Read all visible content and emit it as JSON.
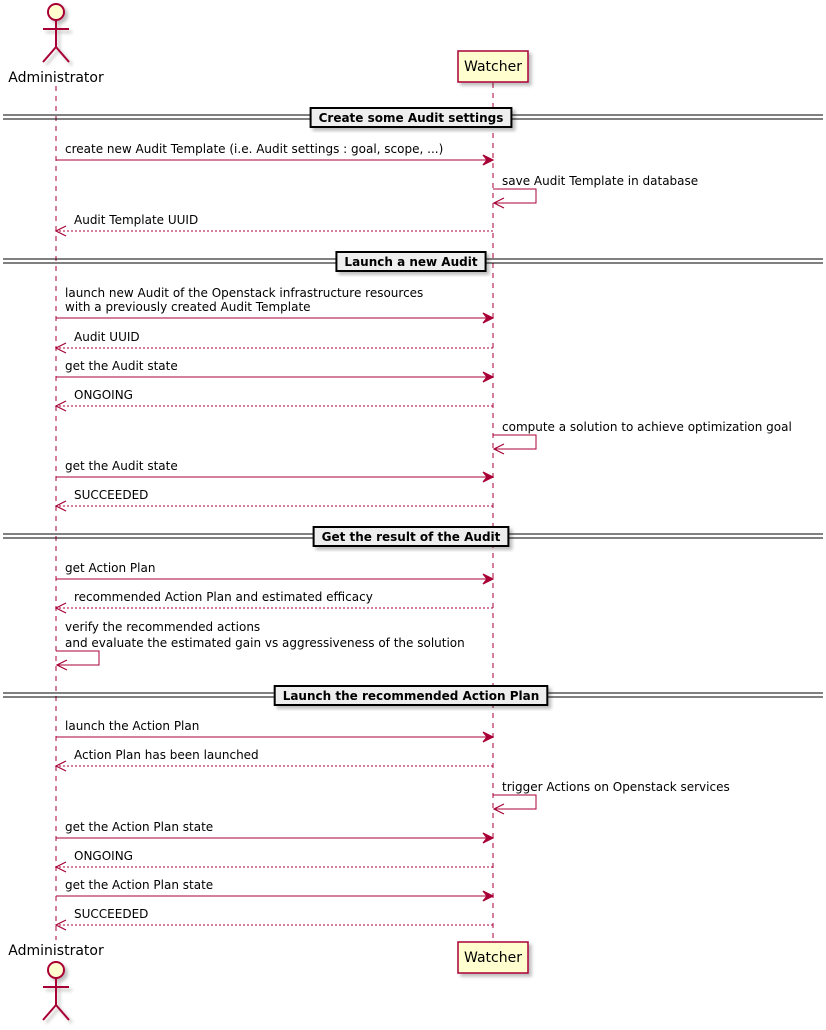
{
  "colors": {
    "line": "#A80036",
    "participant_fill": "#FEFECE",
    "divider_fill": "#EEEEEE"
  },
  "participants": {
    "admin": {
      "label": "Administrator",
      "kind": "actor"
    },
    "watcher": {
      "label": "Watcher",
      "kind": "participant"
    }
  },
  "sequence": [
    {
      "type": "divider",
      "label": "Create some Audit settings"
    },
    {
      "type": "msg",
      "from": "admin",
      "to": "watcher",
      "style": "sync",
      "lines": [
        "create new Audit Template (i.e. Audit settings : goal, scope, ...)"
      ]
    },
    {
      "type": "self",
      "on": "watcher",
      "lines": [
        "save Audit Template in database"
      ]
    },
    {
      "type": "msg",
      "from": "watcher",
      "to": "admin",
      "style": "return",
      "lines": [
        "Audit Template UUID"
      ]
    },
    {
      "type": "divider",
      "label": "Launch a new Audit"
    },
    {
      "type": "msg",
      "from": "admin",
      "to": "watcher",
      "style": "sync",
      "lines": [
        "launch new Audit of the Openstack infrastructure resources",
        "with a previously created Audit Template"
      ]
    },
    {
      "type": "msg",
      "from": "watcher",
      "to": "admin",
      "style": "return",
      "lines": [
        "Audit UUID"
      ]
    },
    {
      "type": "msg",
      "from": "admin",
      "to": "watcher",
      "style": "sync",
      "lines": [
        "get the Audit state"
      ]
    },
    {
      "type": "msg",
      "from": "watcher",
      "to": "admin",
      "style": "return",
      "lines": [
        "ONGOING"
      ]
    },
    {
      "type": "self",
      "on": "watcher",
      "lines": [
        "compute a solution to achieve optimization goal"
      ]
    },
    {
      "type": "msg",
      "from": "admin",
      "to": "watcher",
      "style": "sync",
      "lines": [
        "get the Audit state"
      ]
    },
    {
      "type": "msg",
      "from": "watcher",
      "to": "admin",
      "style": "return",
      "lines": [
        "SUCCEEDED"
      ]
    },
    {
      "type": "divider",
      "label": "Get the result of the Audit"
    },
    {
      "type": "msg",
      "from": "admin",
      "to": "watcher",
      "style": "sync",
      "lines": [
        "get Action Plan"
      ]
    },
    {
      "type": "msg",
      "from": "watcher",
      "to": "admin",
      "style": "return",
      "lines": [
        "recommended Action Plan and estimated efficacy"
      ]
    },
    {
      "type": "self",
      "on": "admin",
      "lines": [
        "verify the recommended actions",
        "and evaluate the estimated gain vs aggressiveness of the solution"
      ]
    },
    {
      "type": "divider",
      "label": "Launch the recommended Action Plan"
    },
    {
      "type": "msg",
      "from": "admin",
      "to": "watcher",
      "style": "sync",
      "lines": [
        "launch the Action Plan"
      ]
    },
    {
      "type": "msg",
      "from": "watcher",
      "to": "admin",
      "style": "return",
      "lines": [
        "Action Plan has been launched"
      ]
    },
    {
      "type": "self",
      "on": "watcher",
      "lines": [
        "trigger Actions on Openstack services"
      ]
    },
    {
      "type": "msg",
      "from": "admin",
      "to": "watcher",
      "style": "sync",
      "lines": [
        "get the Action Plan state"
      ]
    },
    {
      "type": "msg",
      "from": "watcher",
      "to": "admin",
      "style": "return",
      "lines": [
        "ONGOING"
      ]
    },
    {
      "type": "msg",
      "from": "admin",
      "to": "watcher",
      "style": "sync",
      "lines": [
        "get the Action Plan state"
      ]
    },
    {
      "type": "msg",
      "from": "watcher",
      "to": "admin",
      "style": "return",
      "lines": [
        "SUCCEEDED"
      ]
    }
  ]
}
